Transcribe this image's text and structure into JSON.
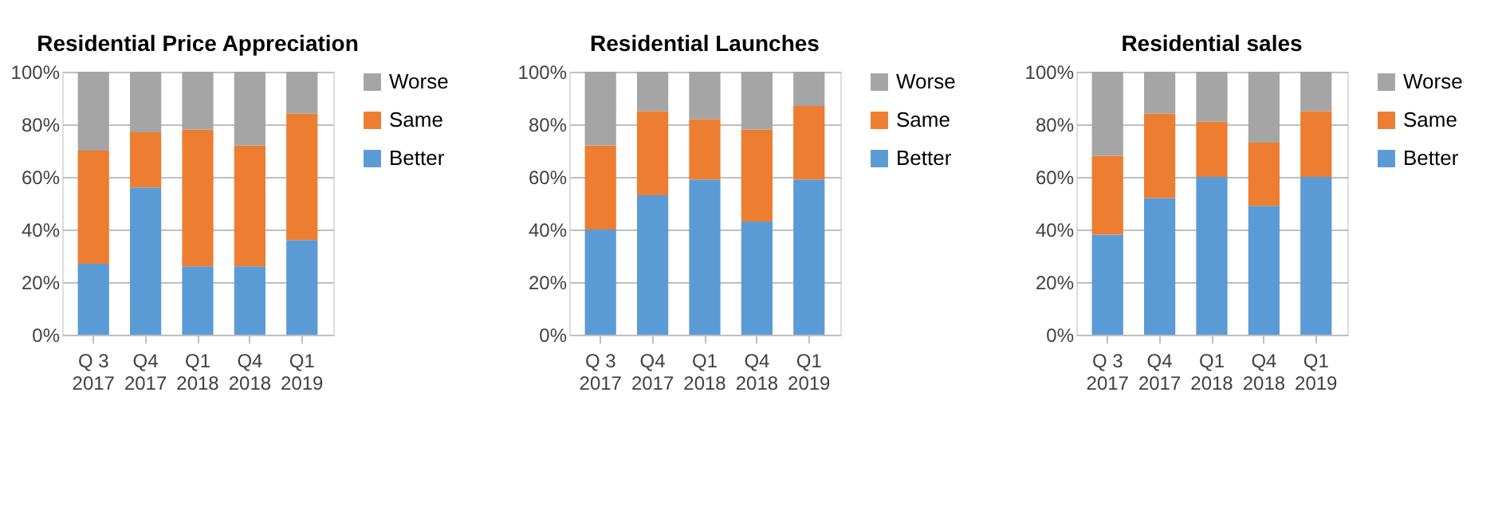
{
  "chart_data": [
    {
      "type": "bar",
      "stacked": true,
      "title": "Residential  Price Appreciation",
      "categories": [
        "Q 3\n2017",
        "Q4\n2017",
        "Q1\n2018",
        "Q4\n2018",
        "Q1\n2019"
      ],
      "series": [
        {
          "name": "Better",
          "color": "#5b9bd5",
          "values": [
            27,
            56,
            26,
            26,
            36
          ]
        },
        {
          "name": "Same",
          "color": "#ed7d31",
          "values": [
            43,
            21,
            52,
            46,
            48
          ]
        },
        {
          "name": "Worse",
          "color": "#a5a5a5",
          "values": [
            30,
            23,
            22,
            28,
            16
          ]
        }
      ],
      "ylim": [
        0,
        100
      ],
      "yticks": [
        {
          "value": 0,
          "label": "0%"
        },
        {
          "value": 20,
          "label": "20%"
        },
        {
          "value": 40,
          "label": "40%"
        },
        {
          "value": 60,
          "label": "60%"
        },
        {
          "value": 80,
          "label": "80%"
        },
        {
          "value": 100,
          "label": "100%"
        }
      ],
      "grid": "y",
      "legend": "right"
    },
    {
      "type": "bar",
      "stacked": true,
      "title": "Residential Launches",
      "categories": [
        "Q 3\n2017",
        "Q4\n2017",
        "Q1\n2018",
        "Q4\n2018",
        "Q1\n2019"
      ],
      "series": [
        {
          "name": "Better",
          "color": "#5b9bd5",
          "values": [
            40,
            53,
            59,
            43,
            59
          ]
        },
        {
          "name": "Same",
          "color": "#ed7d31",
          "values": [
            32,
            32,
            23,
            35,
            28
          ]
        },
        {
          "name": "Worse",
          "color": "#a5a5a5",
          "values": [
            28,
            15,
            18,
            22,
            13
          ]
        }
      ],
      "ylim": [
        0,
        100
      ],
      "yticks": [
        {
          "value": 0,
          "label": "0%"
        },
        {
          "value": 20,
          "label": "20%"
        },
        {
          "value": 40,
          "label": "40%"
        },
        {
          "value": 60,
          "label": "60%"
        },
        {
          "value": 80,
          "label": "80%"
        },
        {
          "value": 100,
          "label": "100%"
        }
      ],
      "grid": "y",
      "legend": "right"
    },
    {
      "type": "bar",
      "stacked": true,
      "title": "Residential sales",
      "categories": [
        "Q 3\n2017",
        "Q4\n2017",
        "Q1\n2018",
        "Q4\n2018",
        "Q1\n2019"
      ],
      "series": [
        {
          "name": "Better",
          "color": "#5b9bd5",
          "values": [
            38,
            52,
            60,
            49,
            60
          ]
        },
        {
          "name": "Same",
          "color": "#ed7d31",
          "values": [
            30,
            32,
            21,
            24,
            25
          ]
        },
        {
          "name": "Worse",
          "color": "#a5a5a5",
          "values": [
            32,
            16,
            19,
            27,
            15
          ]
        }
      ],
      "ylim": [
        0,
        100
      ],
      "yticks": [
        {
          "value": 0,
          "label": "0%"
        },
        {
          "value": 20,
          "label": "20%"
        },
        {
          "value": 40,
          "label": "40%"
        },
        {
          "value": 60,
          "label": "60%"
        },
        {
          "value": 80,
          "label": "80%"
        },
        {
          "value": 100,
          "label": "100%"
        }
      ],
      "grid": "y",
      "legend": "right"
    }
  ]
}
